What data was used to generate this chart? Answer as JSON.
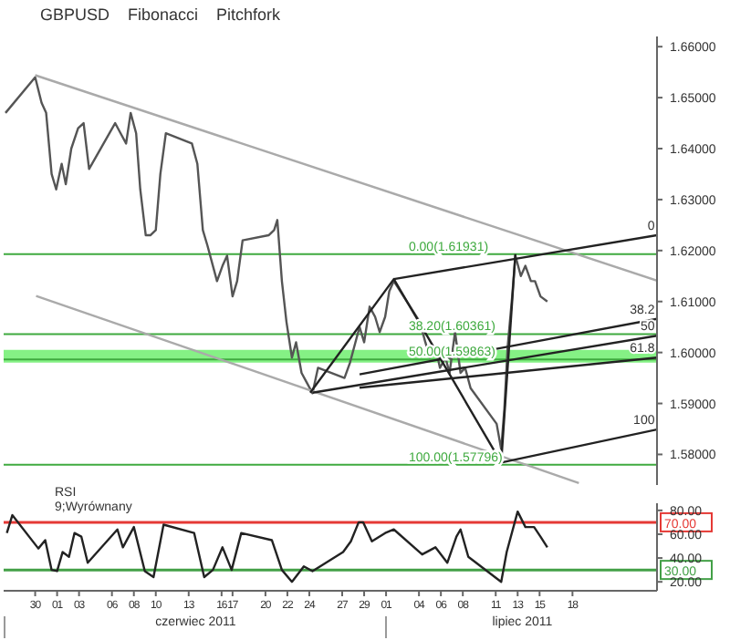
{
  "chart_data": [
    {
      "type": "line",
      "title": "GBPUSD",
      "annotations": [
        "Fibonacci",
        "Pitchfork",
        {
          "text": "0",
          "x": "2011-07-25T12:00",
          "y": 1.623
        },
        {
          "text": "38.2",
          "x": "2011-07-25T12:00",
          "y": 1.6066
        },
        {
          "text": "50",
          "x": "2011-07-25T12:00",
          "y": 1.6033
        },
        {
          "text": "61.8",
          "x": "2011-07-25T12:00",
          "y": 1.599
        },
        {
          "text": "100",
          "x": "2011-07-25T12:00",
          "y": 1.5849
        }
      ],
      "xlim": [
        "2011-05-27T03:00",
        "2011-07-25T17:00"
      ],
      "ylim": [
        1.574,
        1.662
      ],
      "yticks": [
        {
          "value": 1.66,
          "label": "1.66000"
        },
        {
          "value": 1.65,
          "label": "1.65000"
        },
        {
          "value": 1.64,
          "label": "1.64000"
        },
        {
          "value": 1.63,
          "label": "1.63000"
        },
        {
          "value": 1.62,
          "label": "1.62000"
        },
        {
          "value": 1.61,
          "label": "1.61000"
        },
        {
          "value": 1.6,
          "label": "1.60000"
        },
        {
          "value": 1.59,
          "label": "1.59000"
        },
        {
          "value": 1.58,
          "label": "1.58000"
        }
      ],
      "tick_labels": "y",
      "ref_lines": [
        {
          "axis": "y",
          "value": 1.61931,
          "label": "0.00(1.61931)",
          "color": "#3faa3f"
        },
        {
          "axis": "y",
          "value": 1.60361,
          "label": "38.20(1.60361)",
          "color": "#3faa3f"
        },
        {
          "axis": "y",
          "value": 1.59863,
          "label": "50.00(1.59863)",
          "color": "#3faa3f"
        },
        {
          "axis": "y",
          "value": 1.57796,
          "label": "100.00(1.57796)",
          "color": "#3faa3f"
        }
      ],
      "bands": [
        {
          "axis": "y",
          "from": 1.598,
          "to": 1.6005,
          "color": "#66ee66"
        }
      ],
      "series": [
        {
          "color": "#555555",
          "x": [
            "2011-05-27T07:00",
            "2011-05-30T00:00",
            "2011-05-30T14:00",
            "2011-05-31T00:00",
            "2011-05-31T12:00",
            "2011-05-31T22:00",
            "2011-06-01T10:00",
            "2011-06-01T19:00",
            "2011-06-02T07:00",
            "2011-06-02T22:00",
            "2011-06-03T10:00",
            "2011-06-03T22:00",
            "2011-06-06T07:00",
            "2011-06-06T19:00",
            "2011-06-07T07:00",
            "2011-06-07T17:00",
            "2011-06-08T05:00",
            "2011-06-08T14:00",
            "2011-06-09T02:00",
            "2011-06-09T12:00",
            "2011-06-10T00:00",
            "2011-06-10T10:00",
            "2011-06-10T22:00",
            "2011-06-13T07:00",
            "2011-06-13T19:00",
            "2011-06-14T07:00",
            "2011-06-14T17:00",
            "2011-06-15T05:00",
            "2011-06-15T14:00",
            "2011-06-16T02:00",
            "2011-06-16T12:00",
            "2011-06-17T00:00",
            "2011-06-17T10:00",
            "2011-06-17T22:00",
            "2011-06-20T07:00",
            "2011-06-20T19:00",
            "2011-06-21T02:00",
            "2011-06-21T12:00",
            "2011-06-21T22:00",
            "2011-06-22T10:00",
            "2011-06-22T19:00",
            "2011-06-23T07:00",
            "2011-06-23T19:00",
            "2011-06-24T07:00",
            "2011-06-24T19:00",
            "2011-06-27T05:00",
            "2011-06-27T17:00",
            "2011-06-28T02:00",
            "2011-06-28T14:00",
            "2011-06-29T00:00",
            "2011-06-29T12:00",
            "2011-06-30T00:00",
            "2011-06-30T10:00",
            "2011-06-30T22:00",
            "2011-07-01T07:00",
            "2011-07-01T17:00",
            "2011-07-04T02:00",
            "2011-07-04T14:00",
            "2011-07-05T00:00",
            "2011-07-05T12:00",
            "2011-07-05T22:00",
            "2011-07-06T10:00",
            "2011-07-06T19:00",
            "2011-07-07T07:00",
            "2011-07-07T19:00",
            "2011-07-08T05:00",
            "2011-07-08T17:00",
            "2011-07-11T02:00",
            "2011-07-11T12:00",
            "2011-07-11T19:00",
            "2011-07-12T02:00",
            "2011-07-12T12:00",
            "2011-07-12T19:00",
            "2011-07-13T07:00",
            "2011-07-13T17:00",
            "2011-07-14T05:00",
            "2011-07-14T14:00",
            "2011-07-15T02:00",
            "2011-07-15T17:00"
          ],
          "values": [
            1.647,
            1.654,
            1.649,
            1.647,
            1.635,
            1.632,
            1.637,
            1.633,
            1.64,
            1.644,
            1.645,
            1.636,
            1.645,
            1.643,
            1.641,
            1.647,
            1.643,
            1.632,
            1.623,
            1.623,
            1.624,
            1.635,
            1.643,
            1.641,
            1.637,
            1.624,
            1.621,
            1.617,
            1.614,
            1.617,
            1.619,
            1.611,
            1.614,
            1.622,
            1.623,
            1.624,
            1.626,
            1.614,
            1.606,
            1.599,
            1.602,
            1.596,
            1.594,
            1.592,
            1.597,
            1.595,
            1.598,
            1.601,
            1.605,
            1.602,
            1.609,
            1.607,
            1.604,
            1.607,
            1.612,
            1.614,
            1.606,
            1.602,
            1.599,
            1.601,
            1.597,
            1.599,
            1.596,
            1.604,
            1.596,
            1.597,
            1.593,
            1.586,
            1.581,
            1.589,
            1.601,
            1.611,
            1.619,
            1.615,
            1.617,
            1.614,
            1.614,
            1.611,
            1.61
          ]
        },
        {
          "color": "#aaaaaa",
          "x": [
            "2011-05-30T00:00",
            "2011-07-25T17:00"
          ],
          "values": [
            1.6544,
            1.6141
          ]
        },
        {
          "color": "#aaaaaa",
          "x": [
            "2011-05-30T02:00",
            "2011-07-18T14:00"
          ],
          "values": [
            1.6111,
            1.5744
          ]
        },
        {
          "color": "#222222",
          "x": [
            "2011-06-24T02:00",
            "2011-07-01T17:00",
            "2011-07-11T12:00",
            "2011-07-12T19:00"
          ],
          "values": [
            1.5921,
            1.6144,
            1.5784,
            1.6193
          ]
        },
        {
          "color": "#222222",
          "x": [
            "2011-07-01T17:00",
            "2011-07-25T17:00"
          ],
          "values": [
            1.6144,
            1.623
          ]
        },
        {
          "color": "#222222",
          "x": [
            "2011-06-28T14:00",
            "2011-07-25T17:00"
          ],
          "values": [
            1.5957,
            1.6066
          ]
        },
        {
          "color": "#222222",
          "x": [
            "2011-06-24T07:00",
            "2011-07-25T17:00"
          ],
          "values": [
            1.5921,
            1.6033
          ]
        },
        {
          "color": "#222222",
          "x": [
            "2011-06-28T14:00",
            "2011-07-25T17:00"
          ],
          "values": [
            1.5931,
            1.599
          ]
        },
        {
          "color": "#222222",
          "x": [
            "2011-07-11T12:00",
            "2011-07-25T17:00"
          ],
          "values": [
            1.5784,
            1.5849
          ]
        }
      ]
    },
    {
      "type": "line",
      "title": "RSI",
      "subtitle": "9;Wyrównany",
      "annotations": [
        "czerwiec 2011",
        "lipiec 2011"
      ],
      "xlim": [
        "2011-05-27T03:00",
        "2011-07-25T17:00"
      ],
      "xticks": [
        {
          "value": "2011-05-30",
          "label": "30"
        },
        {
          "value": "2011-06-01",
          "label": "01"
        },
        {
          "value": "2011-06-03",
          "label": "03"
        },
        {
          "value": "2011-06-06",
          "label": "06"
        },
        {
          "value": "2011-06-08",
          "label": "08"
        },
        {
          "value": "2011-06-10",
          "label": "10"
        },
        {
          "value": "2011-06-13",
          "label": "13"
        },
        {
          "value": "2011-06-16",
          "label": "16"
        },
        {
          "value": "2011-06-17",
          "label": "17"
        },
        {
          "value": "2011-06-20",
          "label": "20"
        },
        {
          "value": "2011-06-22",
          "label": "22"
        },
        {
          "value": "2011-06-24",
          "label": "24"
        },
        {
          "value": "2011-06-27",
          "label": "27"
        },
        {
          "value": "2011-06-29",
          "label": "29"
        },
        {
          "value": "2011-07-01",
          "label": "01"
        },
        {
          "value": "2011-07-04",
          "label": "04"
        },
        {
          "value": "2011-07-06",
          "label": "06"
        },
        {
          "value": "2011-07-08",
          "label": "08"
        },
        {
          "value": "2011-07-11",
          "label": "11"
        },
        {
          "value": "2011-07-13",
          "label": "13"
        },
        {
          "value": "2011-07-15",
          "label": "15"
        },
        {
          "value": "2011-07-18",
          "label": "18"
        }
      ],
      "ylim": [
        12.5,
        86
      ],
      "yticks": [
        {
          "value": 20,
          "label": "20.00"
        },
        {
          "value": 40,
          "label": "40.00"
        },
        {
          "value": 60,
          "label": "60.00"
        },
        {
          "value": 80,
          "label": "80.00"
        }
      ],
      "ref_lines": [
        {
          "axis": "y",
          "value": 70,
          "label": "70.00",
          "color": "#e53935"
        },
        {
          "axis": "y",
          "value": 30,
          "label": "30.00",
          "color": "#43a047"
        }
      ],
      "series": [
        {
          "color": "#222222",
          "x": [
            "2011-05-27T10:00",
            "2011-05-27T22:00",
            "2011-05-30T07:00",
            "2011-05-30T22:00",
            "2011-05-31T12:00",
            "2011-06-01T00:00",
            "2011-06-01T12:00",
            "2011-06-02T02:00",
            "2011-06-02T14:00",
            "2011-06-03T05:00",
            "2011-06-03T19:00",
            "2011-06-06T12:00",
            "2011-06-07T00:00",
            "2011-06-08T00:00",
            "2011-06-09T00:00",
            "2011-06-09T19:00",
            "2011-06-10T17:00",
            "2011-06-13T12:00",
            "2011-06-14T10:00",
            "2011-06-15T05:00",
            "2011-06-16T02:00",
            "2011-06-16T22:00",
            "2011-06-17T19:00",
            "2011-06-20T14:00",
            "2011-06-21T12:00",
            "2011-06-22T10:00",
            "2011-06-23T12:00",
            "2011-06-24T07:00",
            "2011-06-27T02:00",
            "2011-06-27T19:00",
            "2011-06-28T12:00",
            "2011-06-28T22:00",
            "2011-06-29T17:00",
            "2011-06-30T22:00",
            "2011-07-01T17:00",
            "2011-07-04T07:00",
            "2011-07-05T12:00",
            "2011-07-06T14:00",
            "2011-07-07T10:00",
            "2011-07-07T19:00",
            "2011-07-08T12:00",
            "2011-07-11T12:00",
            "2011-07-12T00:00",
            "2011-07-13T00:00",
            "2011-07-13T17:00",
            "2011-07-14T12:00",
            "2011-07-15T02:00",
            "2011-07-15T17:00"
          ],
          "values": [
            61,
            76,
            48,
            55,
            30,
            29,
            45,
            41,
            61,
            58,
            36,
            64,
            49,
            66,
            29,
            24,
            68,
            61,
            24,
            30,
            49,
            30,
            61,
            55,
            30,
            20,
            33,
            29,
            45,
            54,
            70,
            70,
            54,
            61,
            64,
            43,
            49,
            36,
            58,
            64,
            41,
            20,
            45,
            79,
            66,
            66,
            58,
            49
          ]
        }
      ]
    }
  ]
}
